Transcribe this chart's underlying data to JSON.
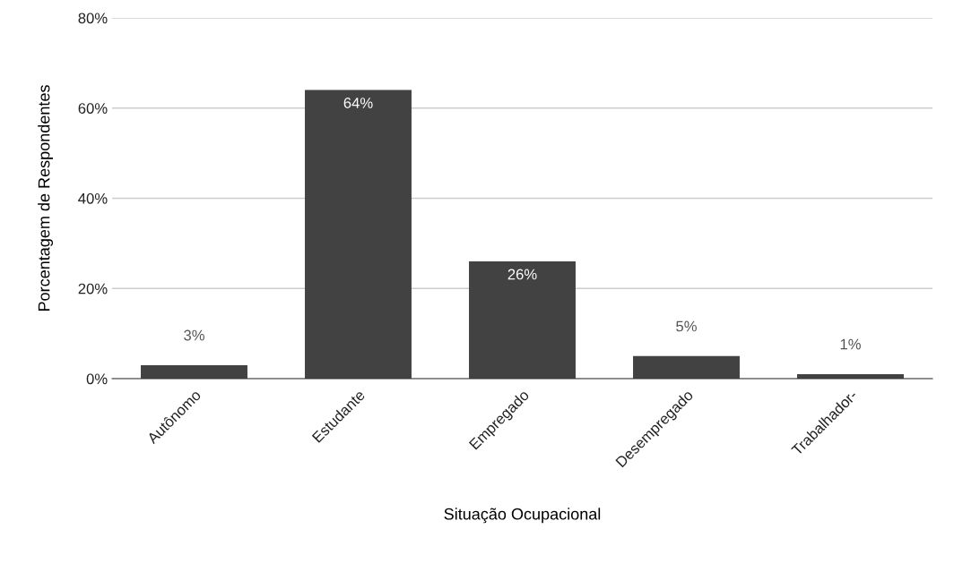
{
  "chart_data": {
    "type": "bar",
    "xlabel": "Situação Ocupacional",
    "ylabel": "Porcentagem de Respondentes",
    "categories": [
      "Autônomo",
      "Estudante",
      "Empregado",
      "Desempregado",
      "Trabalhador-"
    ],
    "values": [
      3,
      64,
      26,
      5,
      1
    ],
    "value_labels": [
      "3%",
      "64%",
      "26%",
      "5%",
      "1%"
    ],
    "color": "#424242",
    "ylim": [
      0,
      80
    ],
    "yticks": [
      {
        "value": 0,
        "label": "0%"
      },
      {
        "value": 20,
        "label": "20%"
      },
      {
        "value": 40,
        "label": "40%"
      },
      {
        "value": 60,
        "label": "60%"
      },
      {
        "value": 80,
        "label": "80%"
      }
    ],
    "grid": "y"
  }
}
